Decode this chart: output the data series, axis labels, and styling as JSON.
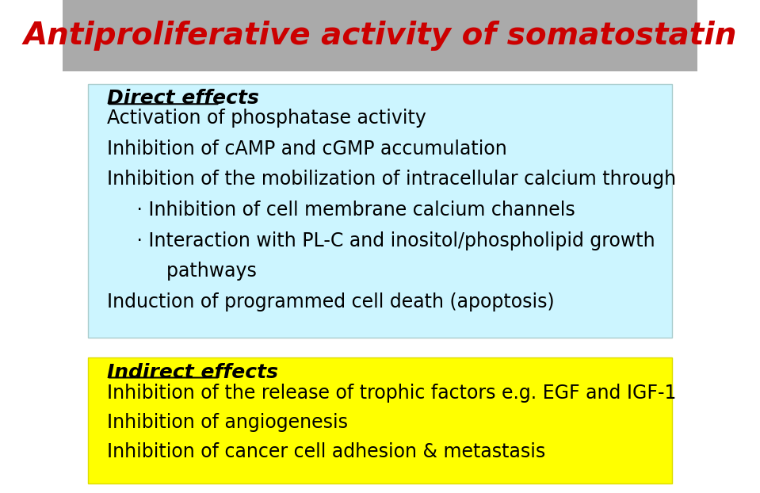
{
  "title": "Antiproliferative activity of somatostatin",
  "title_color": "#cc0000",
  "title_bg_color": "#aaaaaa",
  "title_fontsize": 28,
  "bg_color": "#ffffff",
  "direct_box_color": "#ccf5ff",
  "indirect_box_color": "#ffff00",
  "direct_header": "Direct effects",
  "direct_lines": [
    "Activation of phosphatase activity",
    "Inhibition of cAMP and cGMP accumulation",
    "Inhibition of the mobilization of intracellular calcium through",
    "     · Inhibition of cell membrane calcium channels",
    "     · Interaction with PL-C and inositol/phospholipid growth",
    "          pathways",
    "Induction of programmed cell death (apoptosis)"
  ],
  "indirect_header": "Indirect effects",
  "indirect_lines": [
    "Inhibition of the release of trophic factors e.g. EGF and IGF-1",
    "Inhibition of angiogenesis",
    "Inhibition of cancer cell adhesion & metastasis"
  ],
  "text_color": "#000000",
  "header_fontsize": 18,
  "body_fontsize": 17
}
